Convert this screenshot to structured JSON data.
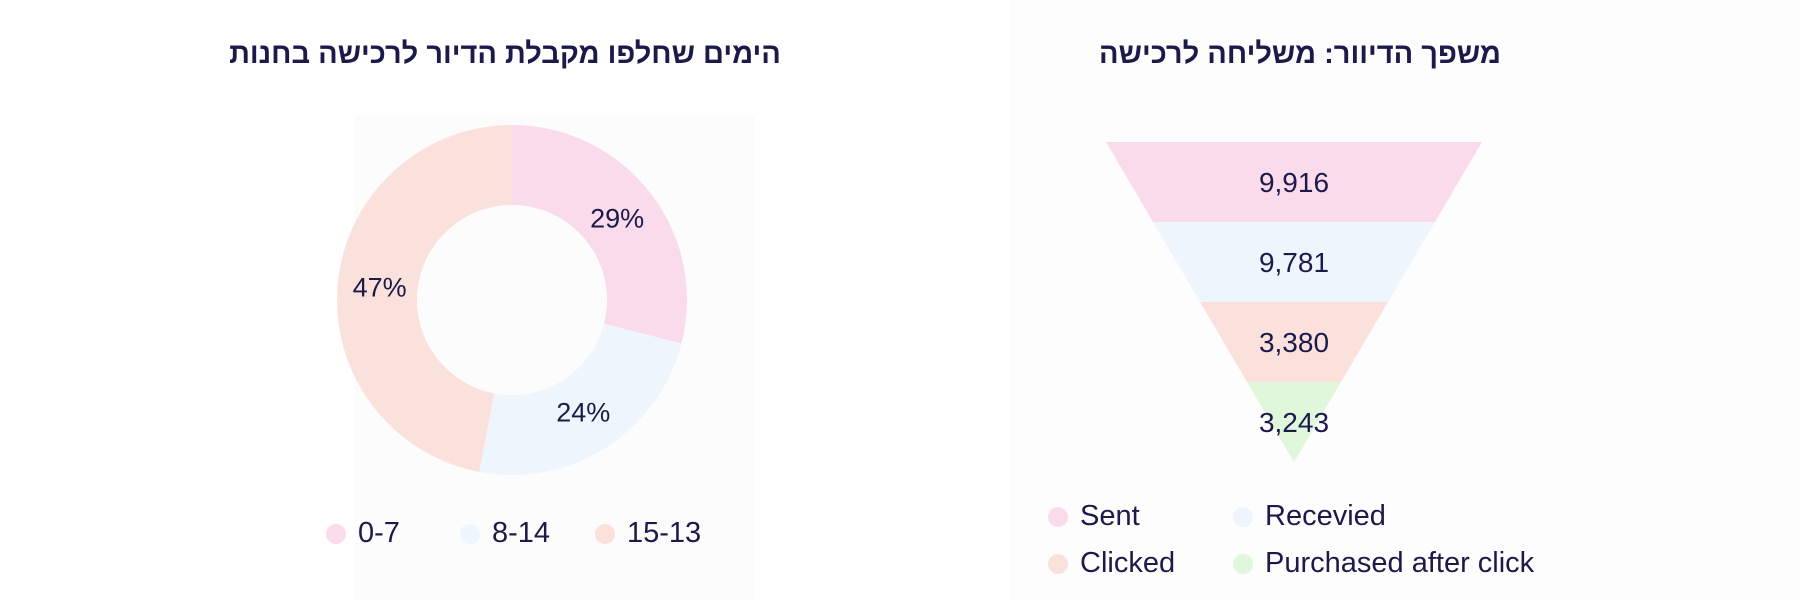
{
  "charts": {
    "donut": {
      "title": "הימים שחלפו מקבלת הדיור לרכישה בחנות",
      "legend": [
        {
          "label": "0-7",
          "color": "#fadbeb"
        },
        {
          "label": "8-14",
          "color": "#eef5fc"
        },
        {
          "label": "15-13",
          "color": "#fae1dc"
        }
      ]
    },
    "funnel": {
      "title": "משפך הדיוור: משליחה לרכישה",
      "legend": [
        {
          "label": "Sent",
          "color": "#fadbeb"
        },
        {
          "label": "Recevied",
          "color": "#eef5fc"
        },
        {
          "label": "Clicked",
          "color": "#fae1dc"
        },
        {
          "label": "Purchased after click",
          "color": "#e1f7dc"
        }
      ]
    }
  },
  "chart_data": [
    {
      "type": "pie",
      "title": "הימים שחלפו מקבלת הדיור לרכישה בחנות",
      "donut": true,
      "categories": [
        "0-7",
        "8-14",
        "15-13"
      ],
      "values": [
        29,
        24,
        47
      ],
      "value_labels": [
        "29%",
        "24%",
        "47%"
      ],
      "colors": [
        "#fadbeb",
        "#eef5fc",
        "#fae1dc"
      ],
      "legend_position": "bottom"
    },
    {
      "type": "funnel",
      "title": "משפך הדיוור: משליחה לרכישה",
      "categories": [
        "Sent",
        "Recevied",
        "Clicked",
        "Purchased after click"
      ],
      "values": [
        9916,
        9781,
        3380,
        3243
      ],
      "value_labels": [
        "9,916",
        "9,781",
        "3,380",
        "3,243"
      ],
      "colors": [
        "#fadbeb",
        "#eef5fc",
        "#fae1dc",
        "#e1f7dc"
      ],
      "legend_position": "bottom"
    }
  ]
}
